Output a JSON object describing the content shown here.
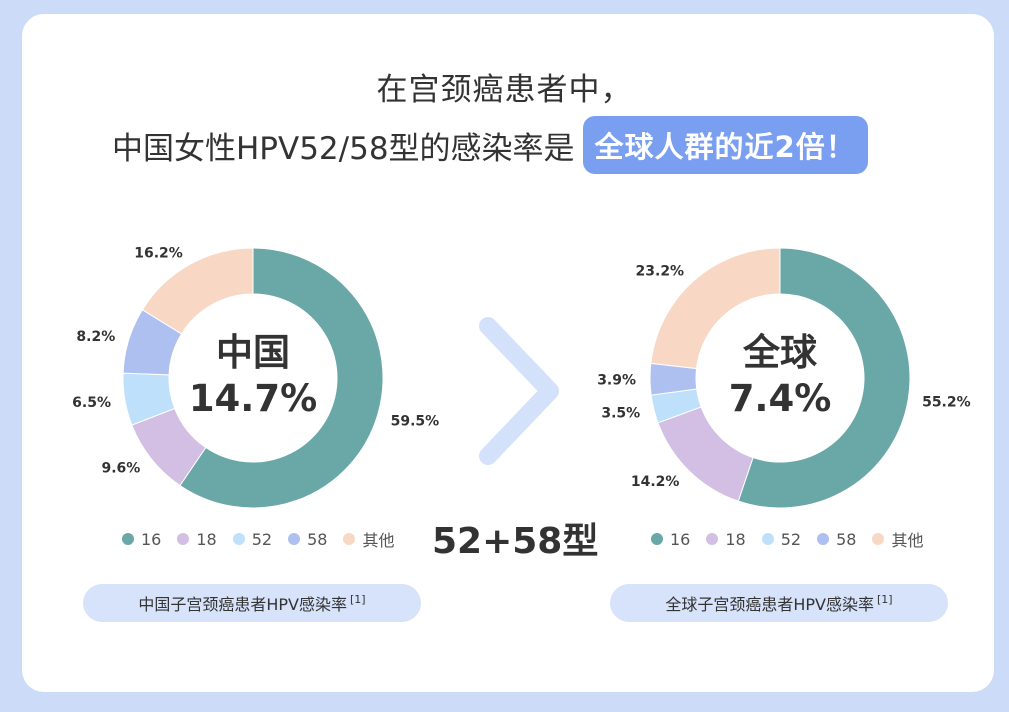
{
  "header": {
    "line1": "在宫颈癌患者中，",
    "line2": "中国女性HPV52/58型的感染率是",
    "highlight": "全球人群的近2倍！"
  },
  "colors": {
    "16": "#6aa7a7",
    "18": "#d2bfe3",
    "52": "#bfe0fb",
    "58": "#aec0ef",
    "other": "#f8d8c4",
    "arrow": "#d3e1fb"
  },
  "chart_data": [
    {
      "type": "pie",
      "region": "中国",
      "center_value": "14.7%",
      "categories": [
        "16",
        "18",
        "52",
        "58",
        "其他"
      ],
      "values": [
        59.5,
        9.6,
        6.5,
        8.2,
        16.2
      ],
      "labels": [
        "59.5%",
        "9.6%",
        "6.5%",
        "8.2%",
        "16.2%"
      ],
      "caption": "中国子宫颈癌患者HPV感染率",
      "ref": "[1]"
    },
    {
      "type": "pie",
      "region": "全球",
      "center_value": "7.4%",
      "categories": [
        "16",
        "18",
        "52",
        "58",
        "其他"
      ],
      "values": [
        55.2,
        14.2,
        3.5,
        3.9,
        23.2
      ],
      "labels": [
        "55.2%",
        "14.2%",
        "3.5%",
        "3.9%",
        "23.2%"
      ],
      "caption": "全球子宫颈癌患者HPV感染率",
      "ref": "[1]"
    }
  ],
  "comparison_label": "52+58型"
}
